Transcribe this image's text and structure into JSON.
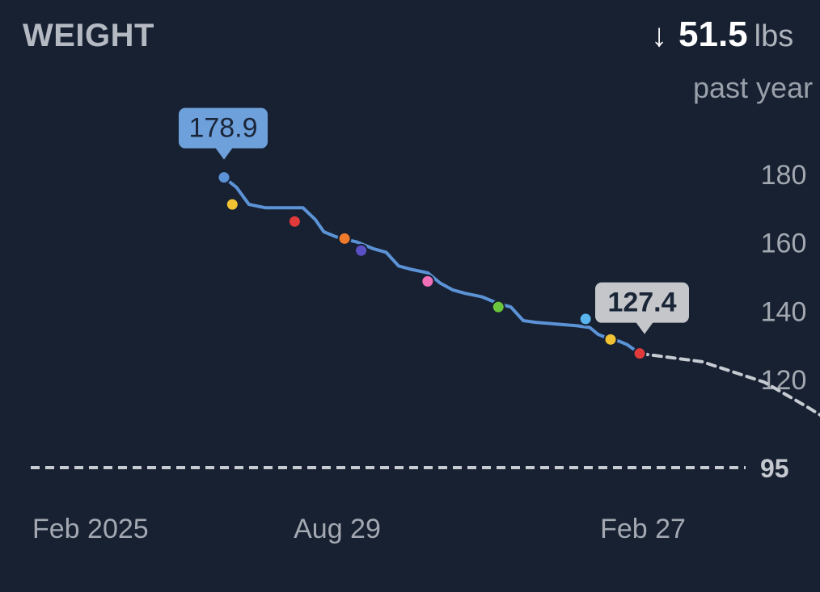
{
  "header": {
    "title": "WEIGHT",
    "arrow": "↓",
    "change_value": "51.5",
    "change_unit": "lbs",
    "period": "past year"
  },
  "colors": {
    "background": "#172132",
    "line": "#5b93d6",
    "projection": "#c7cbd2",
    "start_callout": "#6ea1dc",
    "end_callout": "#c4c6ca",
    "goal_line": "#c7cbd2"
  },
  "chart_data": {
    "type": "line",
    "title": "WEIGHT",
    "ylabel": "",
    "ylim": [
      95,
      190
    ],
    "y_ticks": [
      180,
      160,
      140,
      120
    ],
    "goal": {
      "value": 95,
      "label": "95"
    },
    "x_tick_labels": [
      "Feb 2025",
      "Aug 29",
      "Feb 27"
    ],
    "series": [
      {
        "values": [
          [
            0.0,
            178.9
          ],
          [
            0.03,
            176
          ],
          [
            0.06,
            171
          ],
          [
            0.1,
            170
          ],
          [
            0.14,
            170
          ],
          [
            0.19,
            170
          ],
          [
            0.22,
            166.5
          ],
          [
            0.24,
            163
          ],
          [
            0.27,
            161.5
          ],
          [
            0.32,
            160
          ],
          [
            0.36,
            158
          ],
          [
            0.39,
            157
          ],
          [
            0.42,
            153
          ],
          [
            0.45,
            152
          ],
          [
            0.49,
            151
          ],
          [
            0.52,
            148
          ],
          [
            0.55,
            146
          ],
          [
            0.58,
            145
          ],
          [
            0.62,
            144
          ],
          [
            0.66,
            142
          ],
          [
            0.69,
            141
          ],
          [
            0.72,
            137
          ],
          [
            0.75,
            136.5
          ],
          [
            0.8,
            136
          ],
          [
            0.85,
            135.5
          ],
          [
            0.88,
            135
          ],
          [
            0.9,
            133
          ],
          [
            0.93,
            131.5
          ],
          [
            0.95,
            131
          ],
          [
            0.97,
            130
          ],
          [
            1.0,
            127.4
          ]
        ]
      }
    ],
    "projection": [
      [
        1.0,
        127.4
      ],
      [
        1.15,
        125
      ],
      [
        1.3,
        119
      ],
      [
        1.4,
        112
      ],
      [
        1.48,
        106
      ]
    ],
    "markers": [
      {
        "t": 0.0,
        "value": 178.9,
        "color": "#5b93d6"
      },
      {
        "t": 0.02,
        "value": 171,
        "color": "#f1c232"
      },
      {
        "t": 0.17,
        "value": 166,
        "color": "#e03a3a"
      },
      {
        "t": 0.29,
        "value": 161,
        "color": "#f07a2c"
      },
      {
        "t": 0.33,
        "value": 157.5,
        "color": "#5a4fc4"
      },
      {
        "t": 0.49,
        "value": 148.5,
        "color": "#f06fb6"
      },
      {
        "t": 0.66,
        "value": 141,
        "color": "#6cc63c"
      },
      {
        "t": 0.87,
        "value": 137.5,
        "color": "#5ab4ee"
      },
      {
        "t": 0.93,
        "value": 131.5,
        "color": "#f1c232"
      },
      {
        "t": 1.0,
        "value": 127.4,
        "color": "#e03a3a"
      }
    ],
    "callouts": [
      {
        "label": "178.9",
        "t": 0.0,
        "value": 178.9,
        "style": "start"
      },
      {
        "label": "127.4",
        "t": 1.0,
        "value": 127.4,
        "style": "end"
      }
    ]
  }
}
